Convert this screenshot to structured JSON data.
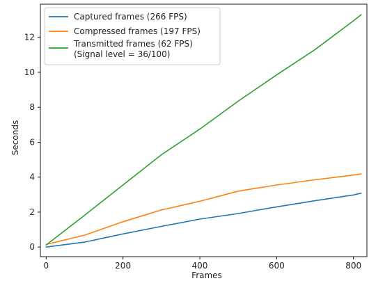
{
  "chart_data": {
    "type": "line",
    "xlabel": "Frames",
    "ylabel": "Seconds",
    "xlim": [
      -15,
      835
    ],
    "ylim": [
      -0.55,
      13.9
    ],
    "xticks": [
      0,
      200,
      400,
      600,
      800
    ],
    "yticks": [
      0,
      2,
      4,
      6,
      8,
      10,
      12
    ],
    "xtick_labels": [
      "0",
      "200",
      "400",
      "600",
      "800"
    ],
    "ytick_labels": [
      "0",
      "2",
      "4",
      "6",
      "8",
      "10",
      "12"
    ],
    "grid": false,
    "legend_position": "top-left",
    "series": [
      {
        "name": "Captured frames (266 FPS)",
        "color": "#1f77b4",
        "x": [
          0,
          100,
          200,
          300,
          400,
          500,
          600,
          700,
          800,
          820
        ],
        "y": [
          0.0,
          0.28,
          0.75,
          1.18,
          1.6,
          1.92,
          2.3,
          2.65,
          2.98,
          3.08
        ]
      },
      {
        "name": "Compressed frames (197 FPS)",
        "color": "#ff7f0e",
        "x": [
          0,
          100,
          200,
          300,
          400,
          500,
          600,
          700,
          800,
          820
        ],
        "y": [
          0.15,
          0.68,
          1.45,
          2.12,
          2.62,
          3.2,
          3.55,
          3.85,
          4.12,
          4.18
        ]
      },
      {
        "name": "Transmitted frames (62 FPS)",
        "name_line2": "(Signal level = 36/100)",
        "color": "#2ca02c",
        "x": [
          0,
          100,
          200,
          300,
          400,
          500,
          600,
          700,
          800,
          820
        ],
        "y": [
          0.12,
          1.82,
          3.55,
          5.28,
          6.75,
          8.35,
          9.85,
          11.3,
          12.95,
          13.3
        ]
      }
    ]
  }
}
